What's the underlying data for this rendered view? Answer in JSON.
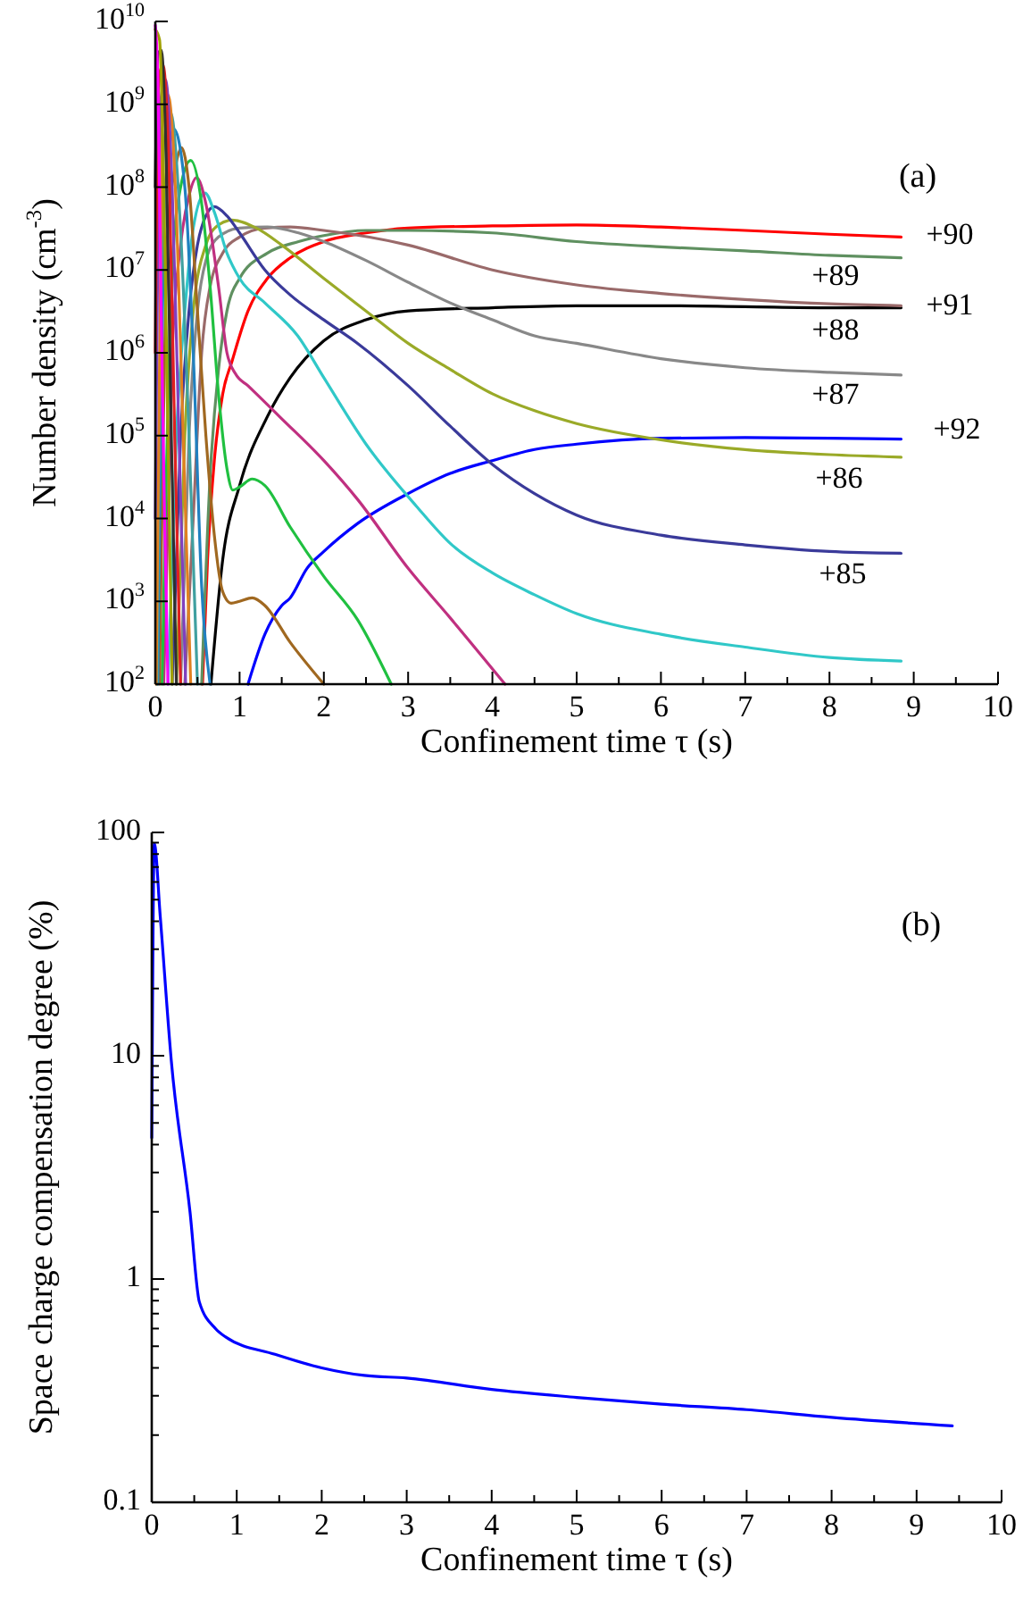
{
  "chart_data": [
    {
      "type": "line",
      "log": "y",
      "xlabel": "Confinement time τ (s)",
      "ylabel": "Number density (cm$^{-3}$)",
      "annotations": [
        "(a)"
      ],
      "xlim": [
        0,
        10
      ],
      "xticks": [
        0,
        1,
        2,
        3,
        4,
        5,
        6,
        7,
        8,
        9,
        10,
        {
          "value": 0.5,
          "label": null
        },
        {
          "value": 1.5,
          "label": null
        },
        {
          "value": 2.5,
          "label": null
        },
        {
          "value": 3.5,
          "label": null
        },
        {
          "value": 4.5,
          "label": null
        },
        {
          "value": 5.5,
          "label": null
        },
        {
          "value": 6.5,
          "label": null
        },
        {
          "value": 7.5,
          "label": null
        },
        {
          "value": 8.5,
          "label": null
        },
        {
          "value": 9.5,
          "label": null
        }
      ],
      "ylim": [
        100,
        10000000000
      ],
      "yticks": [
        {
          "value": 100,
          "label": "10$^{2}$"
        },
        {
          "value": 1000,
          "label": "10$^{3}$"
        },
        {
          "value": 10000,
          "label": "10$^{4}$"
        },
        {
          "value": 100000,
          "label": "10$^{5}$"
        },
        {
          "value": 1000000,
          "label": "10$^{6}$"
        },
        {
          "value": 10000000,
          "label": "10$^{7}$"
        },
        {
          "value": 100000000,
          "label": "10$^{8}$"
        },
        {
          "value": 1000000000,
          "label": "10$^{9}$"
        },
        {
          "value": 10000000000,
          "label": "10$^{10}$"
        }
      ],
      "series": [
        {
          "name": "+90",
          "color": "#ff0000",
          "x": [
            0.56,
            0.62,
            0.7,
            0.8,
            0.91,
            1.1,
            1.33,
            1.6,
            2,
            2.5,
            3,
            4,
            5,
            6,
            7,
            8,
            8.85
          ],
          "values": [
            100,
            3200,
            50000.0,
            320000.0,
            790000.0,
            3200000.0,
            7900000.0,
            14000000.0,
            22000000.0,
            28000000.0,
            32000000.0,
            34000000.0,
            35000000.0,
            33000000.0,
            30000000.0,
            27000000.0,
            25000000.0
          ]
        },
        {
          "name": "+89",
          "color": "#5f9060",
          "x": [
            0.55,
            0.65,
            0.75,
            0.85,
            1,
            1.33,
            1.7,
            2,
            2.5,
            3,
            4,
            5,
            6,
            7,
            8,
            8.85
          ],
          "values": [
            100,
            32000.0,
            630000.0,
            3200000.0,
            7900000.0,
            16000000.0,
            22000000.0,
            26000000.0,
            30000000.0,
            30000000.0,
            28000000.0,
            22000000.0,
            19000000.0,
            17000000.0,
            15000000.0,
            14000000.0
          ]
        },
        {
          "name": "+91",
          "color": "#000000",
          "x": [
            0.66,
            0.8,
            1,
            1.33,
            1.6,
            2,
            2.5,
            3,
            4,
            5,
            6,
            7,
            8,
            8.85
          ],
          "values": [
            100,
            3200,
            25000.0,
            170000.0,
            500000.0,
            1400000.0,
            2500000.0,
            3200000.0,
            3500000.0,
            3700000.0,
            3700000.0,
            3600000.0,
            3500000.0,
            3500000.0
          ]
        },
        {
          "name": "+88",
          "color": "#9a6a6a",
          "x": [
            0.35,
            0.45,
            0.55,
            0.65,
            0.8,
            1,
            1.3,
            1.6,
            2,
            3,
            4,
            5,
            6,
            7,
            8,
            8.85
          ],
          "values": [
            100,
            10000.0,
            1000000.0,
            6300000.0,
            16000000.0,
            25000000.0,
            32000000.0,
            33000000.0,
            30000000.0,
            20000000.0,
            10000000.0,
            6600000.0,
            5200000.0,
            4400000.0,
            3900000.0,
            3700000.0
          ]
        },
        {
          "name": "+87",
          "color": "#888888",
          "x": [
            0.3,
            0.4,
            0.5,
            0.6,
            0.75,
            1,
            1.33,
            1.7,
            2,
            2.5,
            3,
            3.5,
            4,
            4.5,
            5,
            6,
            7,
            8,
            8.85
          ],
          "values": [
            100,
            100000.0,
            3200000.0,
            13000000.0,
            25000000.0,
            32000000.0,
            33000000.0,
            28000000.0,
            22000000.0,
            13000000.0,
            7100000.0,
            4000000.0,
            2500000.0,
            1600000.0,
            1300000.0,
            850000.0,
            660000.0,
            580000.0,
            540000.0
          ]
        },
        {
          "name": "+92",
          "color": "#0000ff",
          "x": [
            1.1,
            1.3,
            1.5,
            1.6,
            1.8,
            2,
            2.4,
            3,
            3.5,
            4,
            4.5,
            5,
            6,
            7,
            8,
            8.85
          ],
          "values": [
            100,
            400,
            890,
            1100,
            2500,
            4000,
            8700,
            20000.0,
            35000.0,
            50000.0,
            68000.0,
            79000.0,
            93000.0,
            95000.0,
            93000.0,
            91000.0
          ]
        },
        {
          "name": "+86",
          "color": "#9aaa28",
          "x": [
            0.25,
            0.35,
            0.45,
            0.6,
            0.75,
            0.91,
            1.2,
            1.5,
            2,
            2.5,
            3,
            3.5,
            4,
            4.5,
            5,
            6,
            7,
            8,
            8.85
          ],
          "values": [
            100,
            100000.0,
            3200000.0,
            20000000.0,
            35000000.0,
            40000000.0,
            32000000.0,
            20000000.0,
            7900000.0,
            3200000.0,
            1300000.0,
            630000.0,
            320000.0,
            200000.0,
            140000.0,
            89000.0,
            68000.0,
            59000.0,
            55000.0
          ]
        },
        {
          "name": "+85",
          "color": "#3a3a9a",
          "x": [
            0.2,
            0.3,
            0.4,
            0.5,
            0.6,
            0.7,
            0.85,
            1,
            1.3,
            1.6,
            2,
            2.4,
            3,
            3.5,
            4,
            4.5,
            5,
            6,
            7,
            8,
            8.85
          ],
          "values": [
            100,
            100000.0,
            3200000.0,
            20000000.0,
            45000000.0,
            58000000.0,
            45000000.0,
            28000000.0,
            10000000.0,
            5000000.0,
            2500000.0,
            1300000.0,
            400000.0,
            130000.0,
            45000.0,
            20000.0,
            11000.0,
            6300,
            4800,
            4000,
            3800
          ]
        },
        {
          "color": "#30c8c8",
          "x": [
            0.15,
            0.25,
            0.35,
            0.45,
            0.59,
            0.7,
            0.85,
            1,
            1.3,
            1.69,
            2,
            2.5,
            3.1,
            3.5,
            4,
            4.5,
            5,
            6,
            7,
            8,
            8.85
          ],
          "values": [
            100,
            100000.0,
            3200000.0,
            32000000.0,
            85000000.0,
            50000000.0,
            16000000.0,
            7900000.0,
            4000000.0,
            1600000.0,
            500000.0,
            79000.0,
            14000.0,
            5000,
            2200,
            1200,
            710,
            400,
            280,
            210,
            190
          ]
        },
        {
          "color": "#c03080",
          "x": [
            0.1,
            0.2,
            0.3,
            0.4,
            0.49,
            0.6,
            0.75,
            0.85,
            0.95,
            1.1,
            1.5,
            2,
            2.4,
            3,
            3.5,
            4.15
          ],
          "values": [
            100,
            1000000.0,
            20000000.0,
            79000000.0,
            130000000.0,
            63000000.0,
            6300000.0,
            1000000.0,
            560000.0,
            400000.0,
            160000.0,
            50000.0,
            17000.0,
            2500,
            630,
            100
          ]
        },
        {
          "color": "#20c040",
          "x": [
            0.08,
            0.2,
            0.3,
            0.42,
            0.55,
            0.65,
            0.75,
            0.85,
            0.92,
            1,
            1.15,
            1.3,
            1.6,
            2,
            2.4,
            2.8
          ],
          "values": [
            100,
            10000000.0,
            100000000.0,
            210000000.0,
            63000000.0,
            6300000.0,
            320000.0,
            40000.0,
            22000.0,
            24000.0,
            30000.0,
            25000.0,
            7900,
            2000,
            600,
            100
          ]
        },
        {
          "color": "#a06820",
          "x": [
            0.05,
            0.15,
            0.25,
            0.31,
            0.4,
            0.5,
            0.6,
            0.7,
            0.8,
            0.9,
            1,
            1.15,
            1.3,
            1.6,
            2
          ],
          "values": [
            100,
            32000000.0,
            200000000.0,
            300000000.0,
            100000000.0,
            3200000.0,
            100000.0,
            6300,
            1300,
            950,
            1000,
            1100,
            890,
            320,
            100
          ]
        },
        {
          "color": "#2080c0",
          "x": [
            0.03,
            0.12,
            0.22,
            0.35,
            0.45,
            0.55,
            0.65
          ],
          "values": [
            100,
            100000000.0,
            500000000.0,
            100000000.0,
            1000000.0,
            1500,
            100
          ]
        },
        {
          "color": "#40a0a0",
          "x": [
            0.02,
            0.1,
            0.18,
            0.3,
            0.4,
            0.5
          ],
          "values": [
            100,
            300000000.0,
            800000000.0,
            30000000.0,
            100000.0,
            100
          ]
        },
        {
          "color": "#e08020",
          "x": [
            0.01,
            0.08,
            0.15,
            0.25,
            0.33,
            0.42
          ],
          "values": [
            100,
            500000000.0,
            1300000000.0,
            50000000.0,
            100000.0,
            100
          ]
        },
        {
          "color": "#8040c0",
          "x": [
            0,
            0.06,
            0.12,
            0.2,
            0.28,
            0.36
          ],
          "values": [
            10000.0,
            1000000000.0,
            2000000000.0,
            100000000.0,
            100000.0,
            100
          ]
        },
        {
          "color": "#e02020",
          "x": [
            0,
            0.04,
            0.09,
            0.16,
            0.23,
            0.3
          ],
          "values": [
            1000000.0,
            2000000000.0,
            3000000000.0,
            200000000.0,
            100000.0,
            100
          ]
        },
        {
          "color": "#303030",
          "x": [
            0,
            0.03,
            0.07,
            0.13,
            0.19,
            0.25
          ],
          "values": [
            100000000.0,
            4000000000.0,
            4500000000.0,
            200000000.0,
            100000.0,
            100
          ]
        },
        {
          "color": "#a0a000",
          "x": [
            0,
            0.05,
            0.1,
            0.15,
            0.2
          ],
          "values": [
            8000000000.0,
            6000000000.0,
            100000000.0,
            100000.0,
            100
          ]
        },
        {
          "color": "#ff00ff",
          "x": [
            0,
            0.03,
            0.07,
            0.11,
            0.15
          ],
          "values": [
            9000000000.0,
            2000000000.0,
            3000000.0,
            10000.0,
            100
          ]
        }
      ]
    },
    {
      "type": "line",
      "log": "y",
      "xlabel": "Confinement time τ (s)",
      "ylabel": "Space charge compensation degree (%)",
      "annotations": [
        "(b)"
      ],
      "xlim": [
        0,
        10
      ],
      "xticks": [
        0,
        1,
        2,
        3,
        4,
        5,
        6,
        7,
        8,
        9,
        10,
        {
          "value": 0.5,
          "label": null
        },
        {
          "value": 1.5,
          "label": null
        },
        {
          "value": 2.5,
          "label": null
        },
        {
          "value": 3.5,
          "label": null
        },
        {
          "value": 4.5,
          "label": null
        },
        {
          "value": 5.5,
          "label": null
        },
        {
          "value": 6.5,
          "label": null
        },
        {
          "value": 7.5,
          "label": null
        },
        {
          "value": 8.5,
          "label": null
        },
        {
          "value": 9.5,
          "label": null
        }
      ],
      "ylim": [
        0.1,
        100
      ],
      "yticks": [
        0.1,
        1,
        10,
        100,
        {
          "value": 0.2,
          "label": null
        },
        {
          "value": 0.3,
          "label": null
        },
        {
          "value": 0.4,
          "label": null
        },
        {
          "value": 0.5,
          "label": null
        },
        {
          "value": 0.6,
          "label": null
        },
        {
          "value": 0.7,
          "label": null
        },
        {
          "value": 0.8,
          "label": null
        },
        {
          "value": 0.9,
          "label": null
        },
        {
          "value": 2,
          "label": null
        },
        {
          "value": 3,
          "label": null
        },
        {
          "value": 4,
          "label": null
        },
        {
          "value": 5,
          "label": null
        },
        {
          "value": 6,
          "label": null
        },
        {
          "value": 7,
          "label": null
        },
        {
          "value": 8,
          "label": null
        },
        {
          "value": 9,
          "label": null
        },
        {
          "value": 20,
          "label": null
        },
        {
          "value": 30,
          "label": null
        },
        {
          "value": 40,
          "label": null
        },
        {
          "value": 50,
          "label": null
        },
        {
          "value": 60,
          "label": null
        },
        {
          "value": 70,
          "label": null
        },
        {
          "value": 80,
          "label": null
        },
        {
          "value": 90,
          "label": null
        }
      ],
      "series": [
        {
          "color": "#0000ff",
          "x": [
            0,
            0.03,
            0.1,
            0.23,
            0.45,
            0.56,
            0.75,
            0.87,
            1.45,
            2,
            2.5,
            3,
            4,
            5,
            6,
            7,
            8,
            9.42
          ],
          "values": [
            4.3,
            89,
            42,
            9.5,
            2,
            0.79,
            0.6,
            0.55,
            0.46,
            0.4,
            0.37,
            0.36,
            0.32,
            0.295,
            0.275,
            0.26,
            0.24,
            0.22
          ]
        }
      ]
    }
  ]
}
